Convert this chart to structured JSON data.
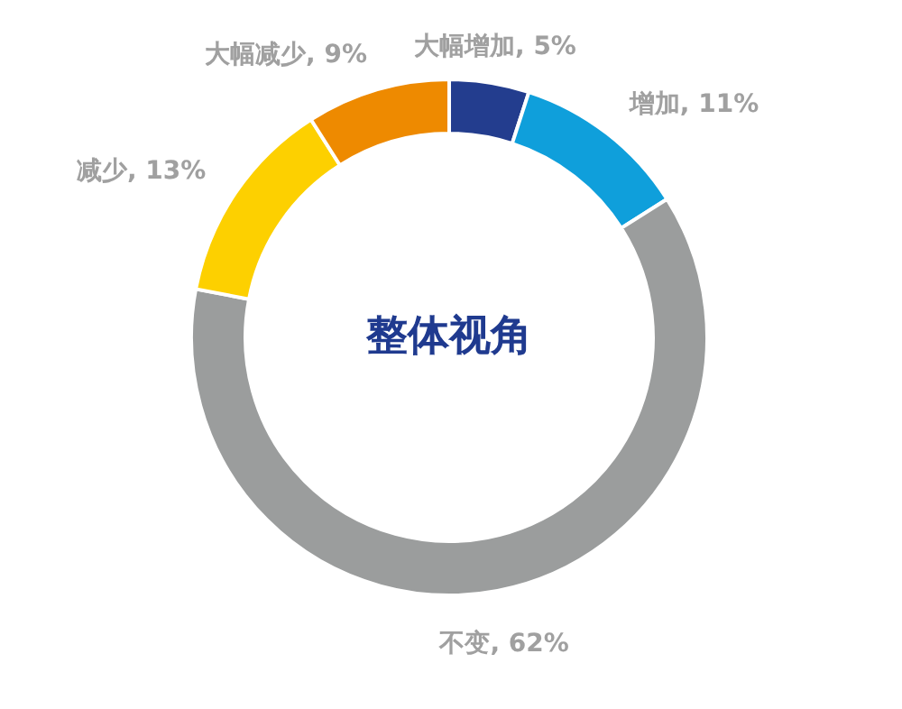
{
  "chart_data": {
    "type": "donut",
    "title": "整体视角",
    "categories": [
      "大幅增加",
      "增加",
      "不变",
      "减少",
      "大幅减少"
    ],
    "values": [
      5,
      11,
      62,
      13,
      9
    ],
    "value_labels": [
      ", 5%",
      ", 11%",
      ", 62%",
      ", 13%",
      ", 9%"
    ],
    "colors": [
      "#233d8e",
      "#0f9fdb",
      "#9b9d9d",
      "#fdd000",
      "#ee8a00"
    ]
  }
}
